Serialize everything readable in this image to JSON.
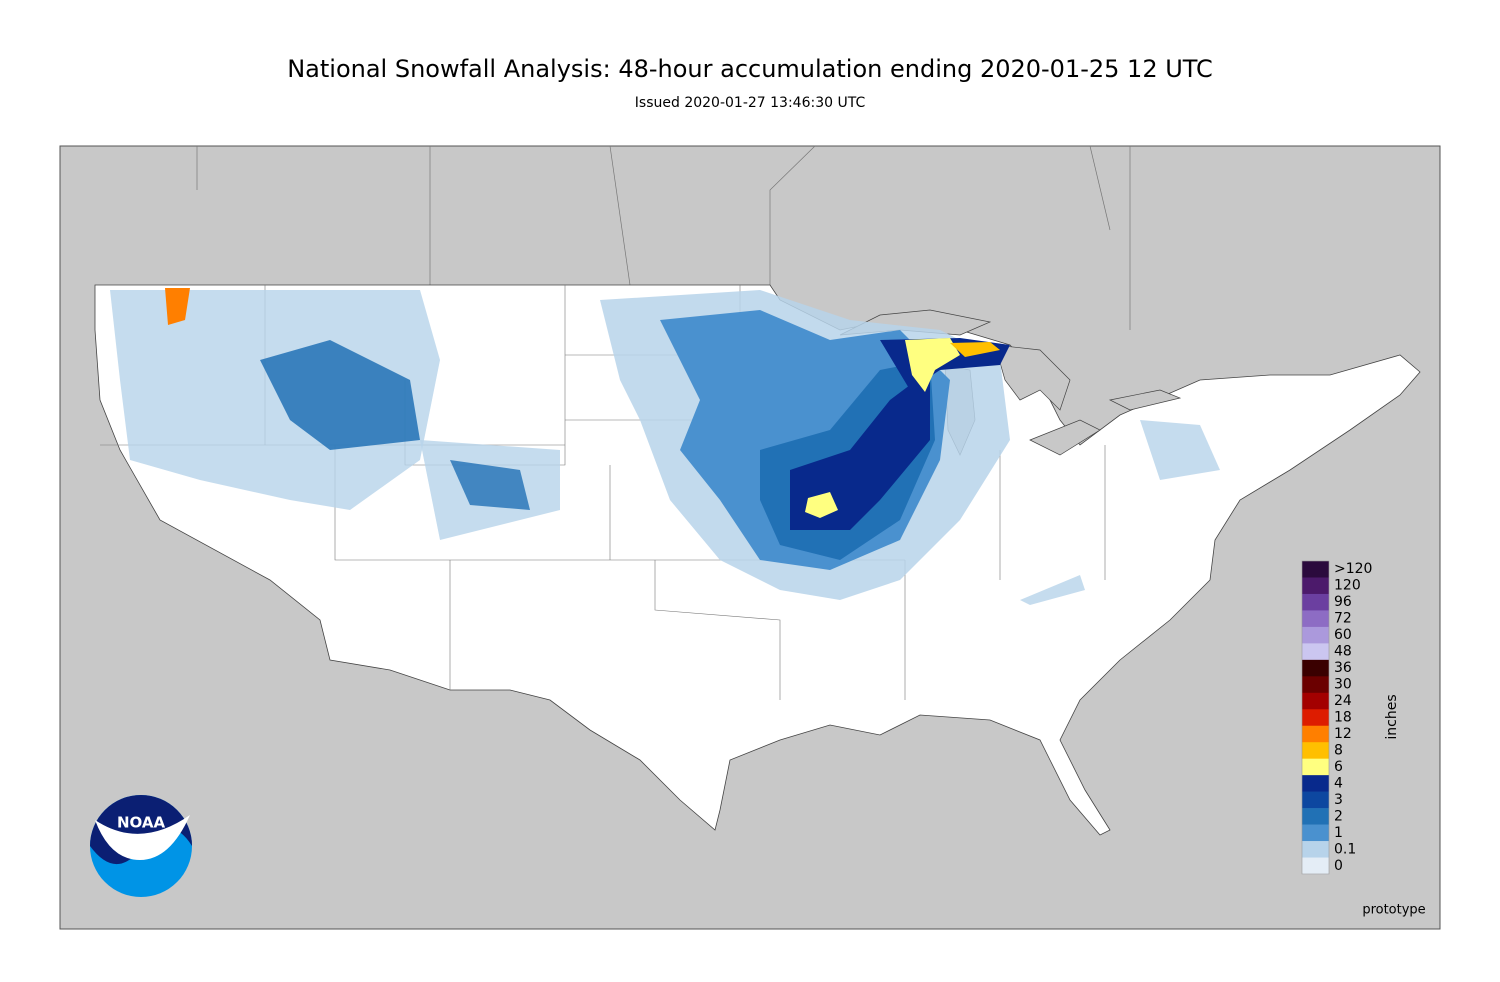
{
  "header": {
    "title": "National Snowfall Analysis: 48-hour accumulation ending 2020-01-25 12 UTC",
    "subtitle": "Issued 2020-01-27 13:46:30 UTC"
  },
  "legend": {
    "unit": "inches",
    "items": [
      {
        "label": ">120",
        "color": "#2b0a3d"
      },
      {
        "label": "120",
        "color": "#4c1a6b"
      },
      {
        "label": "96",
        "color": "#6b3fa0"
      },
      {
        "label": "72",
        "color": "#8d6cc4"
      },
      {
        "label": "60",
        "color": "#ab99dc"
      },
      {
        "label": "48",
        "color": "#cbc6f0"
      },
      {
        "label": "36",
        "color": "#3a0000"
      },
      {
        "label": "30",
        "color": "#6b0000"
      },
      {
        "label": "24",
        "color": "#a30000"
      },
      {
        "label": "18",
        "color": "#dd1c00"
      },
      {
        "label": "12",
        "color": "#ff7f00"
      },
      {
        "label": "8",
        "color": "#ffbf00"
      },
      {
        "label": "6",
        "color": "#ffff80"
      },
      {
        "label": "4",
        "color": "#08298c"
      },
      {
        "label": "3",
        "color": "#0d47a0"
      },
      {
        "label": "2",
        "color": "#2171b5"
      },
      {
        "label": "1",
        "color": "#4a91cf"
      },
      {
        "label": "0.1",
        "color": "#b7d3ea"
      },
      {
        "label": "0",
        "color": "#e4edf6"
      }
    ]
  },
  "logo": {
    "text": "NOAA"
  },
  "footer": {
    "note": "prototype"
  }
}
